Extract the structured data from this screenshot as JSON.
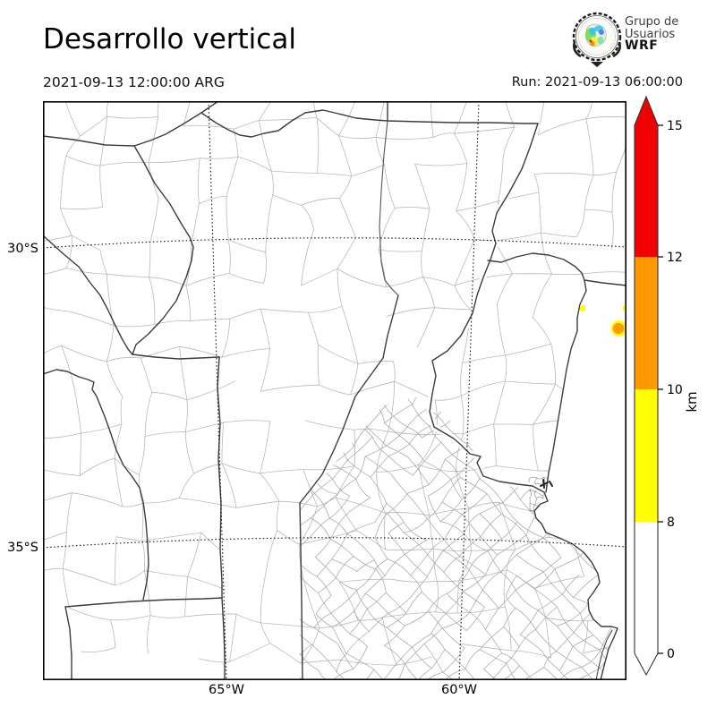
{
  "header": {
    "title": "Desarrollo vertical",
    "valid_time": "2021-09-13 12:00:00 ARG",
    "run_label": "Run: 2021-09-13 06:00:00",
    "logo": {
      "line1": "Grupo de",
      "line2": "Usuarios",
      "line3": "WRF"
    }
  },
  "map": {
    "y_ticks": [
      {
        "label": "30°S"
      },
      {
        "label": "35°S"
      }
    ],
    "x_ticks": [
      {
        "label": "65°W"
      },
      {
        "label": "60°W"
      }
    ],
    "boundary_colors": {
      "province": "#3c3c3c",
      "department": "#b9b9b9"
    },
    "spots": [
      {
        "name": "small-cell",
        "color": "#ffff00",
        "height_range_km": "8–10",
        "approx_lat": "31.1°S",
        "approx_lon": "57.6°W"
      },
      {
        "name": "main-cell",
        "color": "#ff9900",
        "ring_color": "#ffff00",
        "height_range_km": "10–12",
        "approx_lat": "31.4°S",
        "approx_lon": "56.9°W"
      },
      {
        "name": "edge-sliver",
        "color": "#ffff00",
        "height_range_km": "8–10",
        "approx_lat": "31.1°S",
        "approx_lon": "56.7°W"
      }
    ]
  },
  "colorbar": {
    "label": "km",
    "ticks": [
      "15",
      "12",
      "10",
      "8",
      "0"
    ],
    "segments": [
      {
        "range_km": "12–15",
        "color": "#f00000"
      },
      {
        "range_km": "10–12",
        "color": "#ff9900"
      },
      {
        "range_km": "8–10",
        "color": "#ffff00"
      },
      {
        "range_km": "0–8",
        "color": "#ffffff"
      }
    ],
    "over_arrow_color": "#f00000",
    "under_arrow_color": "#ffffff"
  },
  "chart_data": {
    "type": "map",
    "title": "Desarrollo vertical",
    "valid": "2021-09-13 12:00:00 ARG",
    "run": "2021-09-13 06:00:00",
    "region": {
      "lat_range": [
        "27°S",
        "37°S"
      ],
      "lon_range": [
        "68°W",
        "56°W"
      ],
      "graticule_lat": [
        "30°S",
        "35°S"
      ],
      "graticule_lon": [
        "65°W",
        "60°W"
      ]
    },
    "scale": {
      "label": "km",
      "levels": [
        0,
        8,
        10,
        12,
        15
      ],
      "colors": [
        "#ffffff",
        "#ffff00",
        "#ff9900",
        "#f00000"
      ]
    },
    "cells": [
      {
        "lat": "31.1°S",
        "lon": "57.6°W",
        "top_km": "8–10"
      },
      {
        "lat": "31.4°S",
        "lon": "56.9°W",
        "top_km": "10–12"
      }
    ]
  }
}
